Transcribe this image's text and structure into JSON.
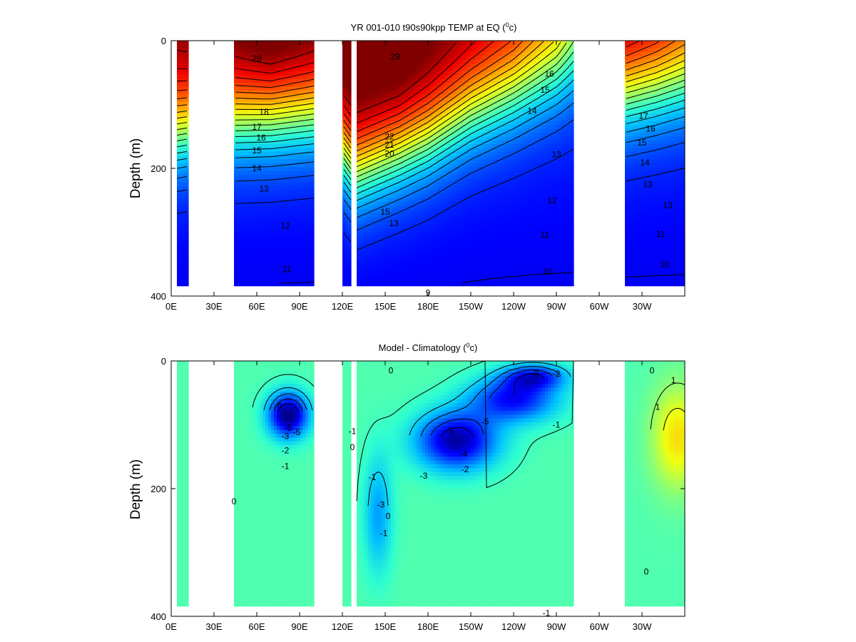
{
  "colors": {
    "jet": [
      "#00008f",
      "#0000ff",
      "#0060ff",
      "#00c0ff",
      "#30ffcf",
      "#90ff70",
      "#f0ff10",
      "#ffb000",
      "#ff5000",
      "#ef0000",
      "#800000"
    ]
  },
  "chart_data": [
    {
      "type": "heatmap",
      "title_main": "YR 001-010 t90s90kpp TEMP at EQ (",
      "title_sup": "0",
      "title_tail": "c)",
      "xlabel": "",
      "ylabel": "Depth (m)",
      "ylim": [
        400,
        0
      ],
      "yticks": [
        "0",
        "200",
        "400"
      ],
      "xticks": [
        "0E",
        "30E",
        "60E",
        "90E",
        "120E",
        "150E",
        "180E",
        "150W",
        "120W",
        "90W",
        "60W",
        "30W"
      ],
      "xtick_values": [
        0,
        30,
        60,
        90,
        120,
        150,
        180,
        210,
        240,
        270,
        300,
        330
      ],
      "xlim": [
        0,
        360
      ],
      "ocean_segments": [
        [
          4,
          11
        ],
        [
          45,
          100
        ],
        [
          121,
          126
        ],
        [
          130,
          282
        ],
        [
          319,
          364
        ]
      ],
      "colorscale": [
        8,
        30
      ],
      "surface_temp_by_lon": [
        [
          4,
          28
        ],
        [
          45,
          29
        ],
        [
          70,
          30
        ],
        [
          100,
          29
        ],
        [
          121,
          30
        ],
        [
          130,
          30
        ],
        [
          160,
          30
        ],
        [
          200,
          28
        ],
        [
          240,
          26
        ],
        [
          270,
          23
        ],
        [
          282,
          20
        ],
        [
          319,
          28
        ],
        [
          340,
          27
        ],
        [
          364,
          25
        ]
      ],
      "thermocline_depth_by_lon": [
        [
          4,
          140
        ],
        [
          45,
          120
        ],
        [
          100,
          110
        ],
        [
          121,
          170
        ],
        [
          130,
          200
        ],
        [
          150,
          180
        ],
        [
          180,
          150
        ],
        [
          210,
          110
        ],
        [
          240,
          80
        ],
        [
          270,
          50
        ],
        [
          282,
          40
        ],
        [
          319,
          80
        ],
        [
          364,
          60
        ]
      ],
      "contour_levels": [
        10,
        11,
        12,
        13,
        14,
        15,
        16,
        17,
        18,
        19,
        20,
        21,
        22,
        23,
        24,
        25,
        26,
        27,
        28,
        29
      ],
      "contour_labels": [
        {
          "text": "29",
          "lon": 60,
          "depth": 28
        },
        {
          "text": "18",
          "lon": 65,
          "depth": 112
        },
        {
          "text": "17",
          "lon": 60,
          "depth": 135
        },
        {
          "text": "16",
          "lon": 63,
          "depth": 152
        },
        {
          "text": "15",
          "lon": 60,
          "depth": 172
        },
        {
          "text": "14",
          "lon": 60,
          "depth": 200
        },
        {
          "text": "13",
          "lon": 65,
          "depth": 232
        },
        {
          "text": "12",
          "lon": 80,
          "depth": 290
        },
        {
          "text": "11",
          "lon": 81,
          "depth": 358
        },
        {
          "text": "29",
          "lon": 157,
          "depth": 25
        },
        {
          "text": "22",
          "lon": 153,
          "depth": 150
        },
        {
          "text": "21",
          "lon": 153,
          "depth": 163
        },
        {
          "text": "20",
          "lon": 153,
          "depth": 177
        },
        {
          "text": "15",
          "lon": 150,
          "depth": 268
        },
        {
          "text": "13",
          "lon": 156,
          "depth": 286
        },
        {
          "text": "16",
          "lon": 265,
          "depth": 52
        },
        {
          "text": "15",
          "lon": 262,
          "depth": 77
        },
        {
          "text": "14",
          "lon": 253,
          "depth": 110
        },
        {
          "text": "13",
          "lon": 270,
          "depth": 178
        },
        {
          "text": "12",
          "lon": 267,
          "depth": 250
        },
        {
          "text": "11",
          "lon": 262,
          "depth": 304
        },
        {
          "text": "10",
          "lon": 264,
          "depth": 362
        },
        {
          "text": "9",
          "lon": 180,
          "depth": 400
        },
        {
          "text": "17",
          "lon": 331,
          "depth": 118
        },
        {
          "text": "16",
          "lon": 336,
          "depth": 138
        },
        {
          "text": "15",
          "lon": 330,
          "depth": 160
        },
        {
          "text": "14",
          "lon": 332,
          "depth": 191
        },
        {
          "text": "13",
          "lon": 334,
          "depth": 225
        },
        {
          "text": "13",
          "lon": 348,
          "depth": 258
        },
        {
          "text": "11",
          "lon": 343,
          "depth": 303
        },
        {
          "text": "10",
          "lon": 346,
          "depth": 350
        }
      ]
    },
    {
      "type": "heatmap",
      "title_main": "Model - Climatology (",
      "title_sup": "0",
      "title_tail": "c)",
      "xlabel": "",
      "ylabel": "Depth (m)",
      "ylim": [
        400,
        0
      ],
      "yticks": [
        "0",
        "200",
        "400"
      ],
      "xticks": [
        "0E",
        "30E",
        "60E",
        "90E",
        "120E",
        "150E",
        "180E",
        "150W",
        "120W",
        "90W",
        "60W",
        "30W"
      ],
      "xtick_values": [
        0,
        30,
        60,
        90,
        120,
        150,
        180,
        210,
        240,
        270,
        300,
        330
      ],
      "xlim": [
        0,
        360
      ],
      "ocean_segments": [
        [
          4,
          11
        ],
        [
          45,
          100
        ],
        [
          121,
          126
        ],
        [
          130,
          282
        ],
        [
          319,
          364
        ]
      ],
      "colorscale": [
        -6,
        6
      ],
      "cold_anomalies": [
        {
          "lon": 82,
          "depth": 85,
          "amp": -5.5,
          "rlon": 14,
          "rdepth": 35
        },
        {
          "lon": 200,
          "depth": 125,
          "amp": -5.0,
          "rlon": 28,
          "rdepth": 45
        },
        {
          "lon": 240,
          "depth": 60,
          "amp": -4.0,
          "rlon": 30,
          "rdepth": 35
        },
        {
          "lon": 255,
          "depth": 25,
          "amp": -3.5,
          "rlon": 22,
          "rdepth": 20
        },
        {
          "lon": 145,
          "depth": 240,
          "amp": -2.0,
          "rlon": 10,
          "rdepth": 90
        }
      ],
      "warm_anomalies": [
        {
          "lon": 355,
          "depth": 120,
          "amp": 2.5,
          "rlon": 18,
          "rdepth": 80
        }
      ],
      "contour_labels": [
        {
          "text": "-5",
          "lon": 75,
          "depth": 70
        },
        {
          "text": "-5",
          "lon": 82,
          "depth": 105
        },
        {
          "text": "-5",
          "lon": 88,
          "depth": 112
        },
        {
          "text": "-3",
          "lon": 80,
          "depth": 118
        },
        {
          "text": "-2",
          "lon": 80,
          "depth": 140
        },
        {
          "text": "-1",
          "lon": 80,
          "depth": 165
        },
        {
          "text": "0",
          "lon": 44,
          "depth": 220
        },
        {
          "text": "-1",
          "lon": 127,
          "depth": 110
        },
        {
          "text": "0",
          "lon": 127,
          "depth": 135
        },
        {
          "text": "-1",
          "lon": 141,
          "depth": 182
        },
        {
          "text": "-3",
          "lon": 147,
          "depth": 225
        },
        {
          "text": "0",
          "lon": 152,
          "depth": 243
        },
        {
          "text": "-1",
          "lon": 149,
          "depth": 270
        },
        {
          "text": "-5",
          "lon": 196,
          "depth": 110
        },
        {
          "text": "-5",
          "lon": 220,
          "depth": 95
        },
        {
          "text": "-4",
          "lon": 205,
          "depth": 145
        },
        {
          "text": "-3",
          "lon": 177,
          "depth": 180
        },
        {
          "text": "-2",
          "lon": 206,
          "depth": 170
        },
        {
          "text": "-3",
          "lon": 255,
          "depth": 20
        },
        {
          "text": "-2",
          "lon": 270,
          "depth": 20
        },
        {
          "text": "-1",
          "lon": 270,
          "depth": 100
        },
        {
          "text": "-1",
          "lon": 263,
          "depth": 410
        },
        {
          "text": "0",
          "lon": 154,
          "depth": 15
        },
        {
          "text": "0",
          "lon": 337,
          "depth": 15
        },
        {
          "text": "1",
          "lon": 352,
          "depth": 30
        },
        {
          "text": "1",
          "lon": 341,
          "depth": 72
        },
        {
          "text": "0",
          "lon": 333,
          "depth": 330
        }
      ]
    }
  ]
}
